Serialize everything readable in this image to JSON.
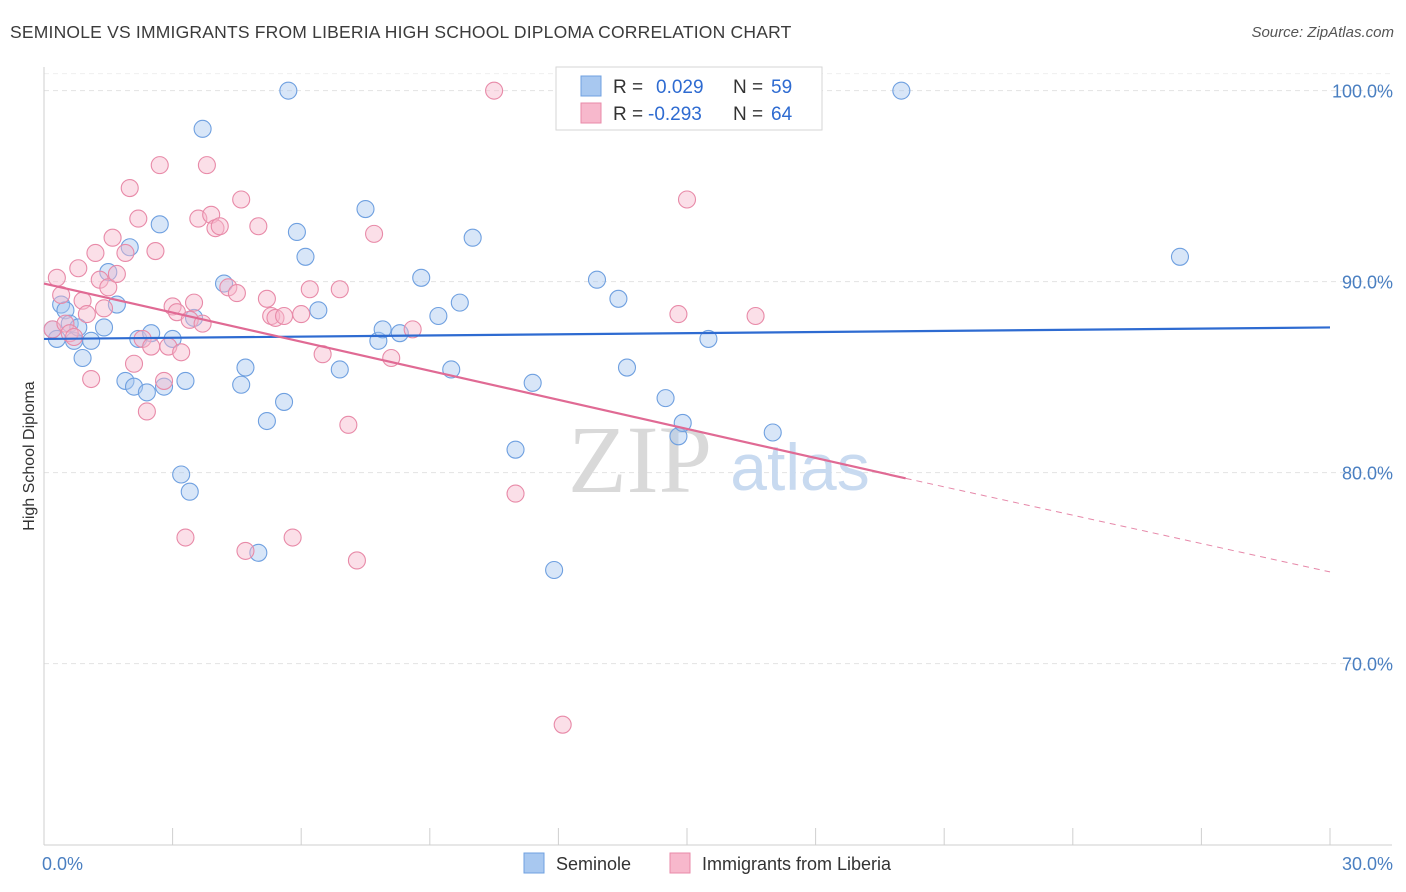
{
  "title": "SEMINOLE VS IMMIGRANTS FROM LIBERIA HIGH SCHOOL DIPLOMA CORRELATION CHART",
  "source": "Source: ZipAtlas.com",
  "watermark": {
    "zip": "ZIP",
    "atlas": "atlas"
  },
  "legend": {
    "r_label": "R =",
    "n_label": "N =",
    "rows": [
      {
        "r": "0.029",
        "n": "59",
        "color": "#a8c8f0",
        "stroke": "#6fa0e0"
      },
      {
        "r": "-0.293",
        "n": "64",
        "color": "#f7b8cc",
        "stroke": "#e88aa8"
      }
    ]
  },
  "bottom_legend": [
    "Seminole",
    "Immigrants from Liberia"
  ],
  "chart_data": {
    "type": "scatter",
    "title": "SEMINOLE VS IMMIGRANTS FROM LIBERIA HIGH SCHOOL DIPLOMA CORRELATION CHART",
    "xlabel": "",
    "ylabel": "High School Diploma",
    "xlim": [
      0,
      30
    ],
    "ylim": [
      60.5,
      101.5
    ],
    "x_tick_labels": [
      {
        "value": 0,
        "label": "0.0%"
      },
      {
        "value": 30,
        "label": "30.0%"
      }
    ],
    "y_tick_labels": [
      {
        "value": 100,
        "label": "100.0%"
      },
      {
        "value": 90,
        "label": "90.0%"
      },
      {
        "value": 80,
        "label": "80.0%"
      },
      {
        "value": 70,
        "label": "70.0%"
      }
    ],
    "grid": true,
    "series": [
      {
        "name": "Seminole",
        "color": "#a8c8f0",
        "stroke": "#6fa0e0",
        "trend": {
          "x0": 0,
          "y0": 87.0,
          "x1": 30,
          "y1": 87.6,
          "color": "#2e6bd1"
        },
        "points": [
          [
            0.2,
            87.5
          ],
          [
            0.3,
            87.0
          ],
          [
            0.4,
            88.8
          ],
          [
            0.5,
            88.5
          ],
          [
            0.6,
            87.8
          ],
          [
            0.7,
            86.9
          ],
          [
            0.8,
            87.6
          ],
          [
            0.9,
            86.0
          ],
          [
            1.1,
            86.9
          ],
          [
            1.4,
            87.6
          ],
          [
            1.5,
            90.5
          ],
          [
            1.7,
            88.8
          ],
          [
            1.9,
            84.8
          ],
          [
            2.0,
            91.8
          ],
          [
            2.1,
            84.5
          ],
          [
            2.2,
            87.0
          ],
          [
            2.4,
            84.2
          ],
          [
            2.5,
            87.3
          ],
          [
            2.7,
            93.0
          ],
          [
            2.8,
            84.5
          ],
          [
            3.0,
            87.0
          ],
          [
            3.2,
            79.9
          ],
          [
            3.3,
            84.8
          ],
          [
            3.4,
            79.0
          ],
          [
            3.5,
            88.1
          ],
          [
            3.7,
            98.0
          ],
          [
            4.2,
            89.9
          ],
          [
            4.6,
            84.6
          ],
          [
            4.7,
            85.5
          ],
          [
            5.0,
            75.8
          ],
          [
            5.2,
            82.7
          ],
          [
            5.6,
            83.7
          ],
          [
            5.7,
            100.0
          ],
          [
            5.9,
            92.6
          ],
          [
            6.1,
            91.3
          ],
          [
            6.4,
            88.5
          ],
          [
            6.9,
            85.4
          ],
          [
            7.5,
            93.8
          ],
          [
            7.8,
            86.9
          ],
          [
            7.9,
            87.5
          ],
          [
            8.3,
            87.3
          ],
          [
            8.8,
            90.2
          ],
          [
            9.2,
            88.2
          ],
          [
            9.5,
            85.4
          ],
          [
            9.7,
            88.9
          ],
          [
            10.0,
            92.3
          ],
          [
            11.0,
            81.2
          ],
          [
            11.4,
            84.7
          ],
          [
            11.9,
            74.9
          ],
          [
            12.9,
            90.1
          ],
          [
            13.4,
            89.1
          ],
          [
            13.6,
            85.5
          ],
          [
            14.5,
            83.9
          ],
          [
            14.8,
            81.9
          ],
          [
            14.9,
            82.6
          ],
          [
            15.5,
            87.0
          ],
          [
            17.0,
            82.1
          ],
          [
            20.0,
            100.0
          ],
          [
            26.5,
            91.3
          ]
        ]
      },
      {
        "name": "Immigrants from Liberia",
        "color": "#f7b8cc",
        "stroke": "#e88aa8",
        "trend": {
          "x0": 0,
          "y0": 89.9,
          "x1": 20.1,
          "y1": 79.7,
          "color": "#e06a94"
        },
        "trend_dashed": {
          "x0": 20.1,
          "y0": 79.7,
          "x1": 30,
          "y1": 74.8
        },
        "points": [
          [
            0.2,
            87.5
          ],
          [
            0.3,
            90.2
          ],
          [
            0.4,
            89.3
          ],
          [
            0.5,
            87.8
          ],
          [
            0.6,
            87.3
          ],
          [
            0.7,
            87.1
          ],
          [
            0.8,
            90.7
          ],
          [
            0.9,
            89.0
          ],
          [
            1.0,
            88.3
          ],
          [
            1.1,
            84.9
          ],
          [
            1.2,
            91.5
          ],
          [
            1.3,
            90.1
          ],
          [
            1.4,
            88.6
          ],
          [
            1.5,
            89.7
          ],
          [
            1.6,
            92.3
          ],
          [
            1.7,
            90.4
          ],
          [
            1.9,
            91.5
          ],
          [
            2.0,
            94.9
          ],
          [
            2.1,
            85.7
          ],
          [
            2.2,
            93.3
          ],
          [
            2.3,
            87.0
          ],
          [
            2.4,
            83.2
          ],
          [
            2.5,
            86.6
          ],
          [
            2.6,
            91.6
          ],
          [
            2.7,
            96.1
          ],
          [
            2.8,
            84.8
          ],
          [
            2.9,
            86.6
          ],
          [
            3.0,
            88.7
          ],
          [
            3.1,
            88.4
          ],
          [
            3.2,
            86.3
          ],
          [
            3.3,
            76.6
          ],
          [
            3.4,
            88.0
          ],
          [
            3.5,
            88.9
          ],
          [
            3.6,
            93.3
          ],
          [
            3.7,
            87.8
          ],
          [
            3.8,
            96.1
          ],
          [
            3.9,
            93.5
          ],
          [
            4.0,
            92.8
          ],
          [
            4.1,
            92.9
          ],
          [
            4.3,
            89.7
          ],
          [
            4.5,
            89.4
          ],
          [
            4.6,
            94.3
          ],
          [
            4.7,
            75.9
          ],
          [
            5.0,
            92.9
          ],
          [
            5.2,
            89.1
          ],
          [
            5.3,
            88.2
          ],
          [
            5.4,
            88.1
          ],
          [
            5.6,
            88.2
          ],
          [
            5.8,
            76.6
          ],
          [
            6.0,
            88.3
          ],
          [
            6.2,
            89.6
          ],
          [
            6.5,
            86.2
          ],
          [
            6.9,
            89.6
          ],
          [
            7.1,
            82.5
          ],
          [
            7.3,
            75.4
          ],
          [
            7.7,
            92.5
          ],
          [
            8.1,
            86.0
          ],
          [
            8.6,
            87.5
          ],
          [
            10.5,
            100.0
          ],
          [
            11.0,
            78.9
          ],
          [
            12.1,
            66.8
          ],
          [
            14.8,
            88.3
          ],
          [
            15.0,
            94.3
          ],
          [
            16.6,
            88.2
          ]
        ]
      }
    ]
  }
}
